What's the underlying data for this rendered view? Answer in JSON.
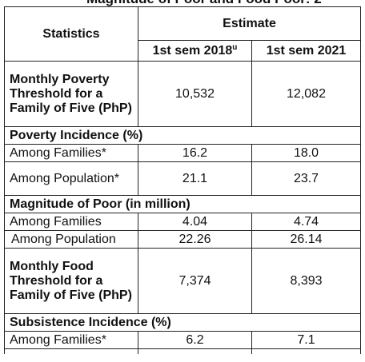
{
  "caption": "Magnitude of Poor and Food Poor: 2",
  "header": {
    "statistics": "Statistics",
    "estimate": "Estimate",
    "col1": "1st sem 2018",
    "col1_sup": "u",
    "col2": "1st sem 2021"
  },
  "rows": {
    "poverty_threshold": {
      "label": "Monthly Poverty Threshold for a Family of Five (PhP)",
      "v1": "10,532",
      "v2": "12,082"
    },
    "poverty_incidence_title": "Poverty Incidence (%)",
    "pi_families": {
      "label": "Among Families*",
      "v1": "16.2",
      "v2": "18.0"
    },
    "pi_population": {
      "label": "Among Population*",
      "v1": "21.1",
      "v2": "23.7"
    },
    "magnitude_title": "Magnitude of Poor (in million)",
    "mag_families": {
      "label": "Among Families",
      "v1": "4.04",
      "v2": "4.74"
    },
    "mag_population": {
      "label": "Among Population",
      "v1": "22.26",
      "v2": "26.14"
    },
    "food_threshold": {
      "label": "Monthly Food Threshold for a Family of Five (PhP)",
      "v1": "7,374",
      "v2": "8,393"
    },
    "subsistence_title": "Subsistence Incidence (%)",
    "sub_families": {
      "label": "Among Families*",
      "v1": "6.2",
      "v2": "7.1"
    }
  }
}
